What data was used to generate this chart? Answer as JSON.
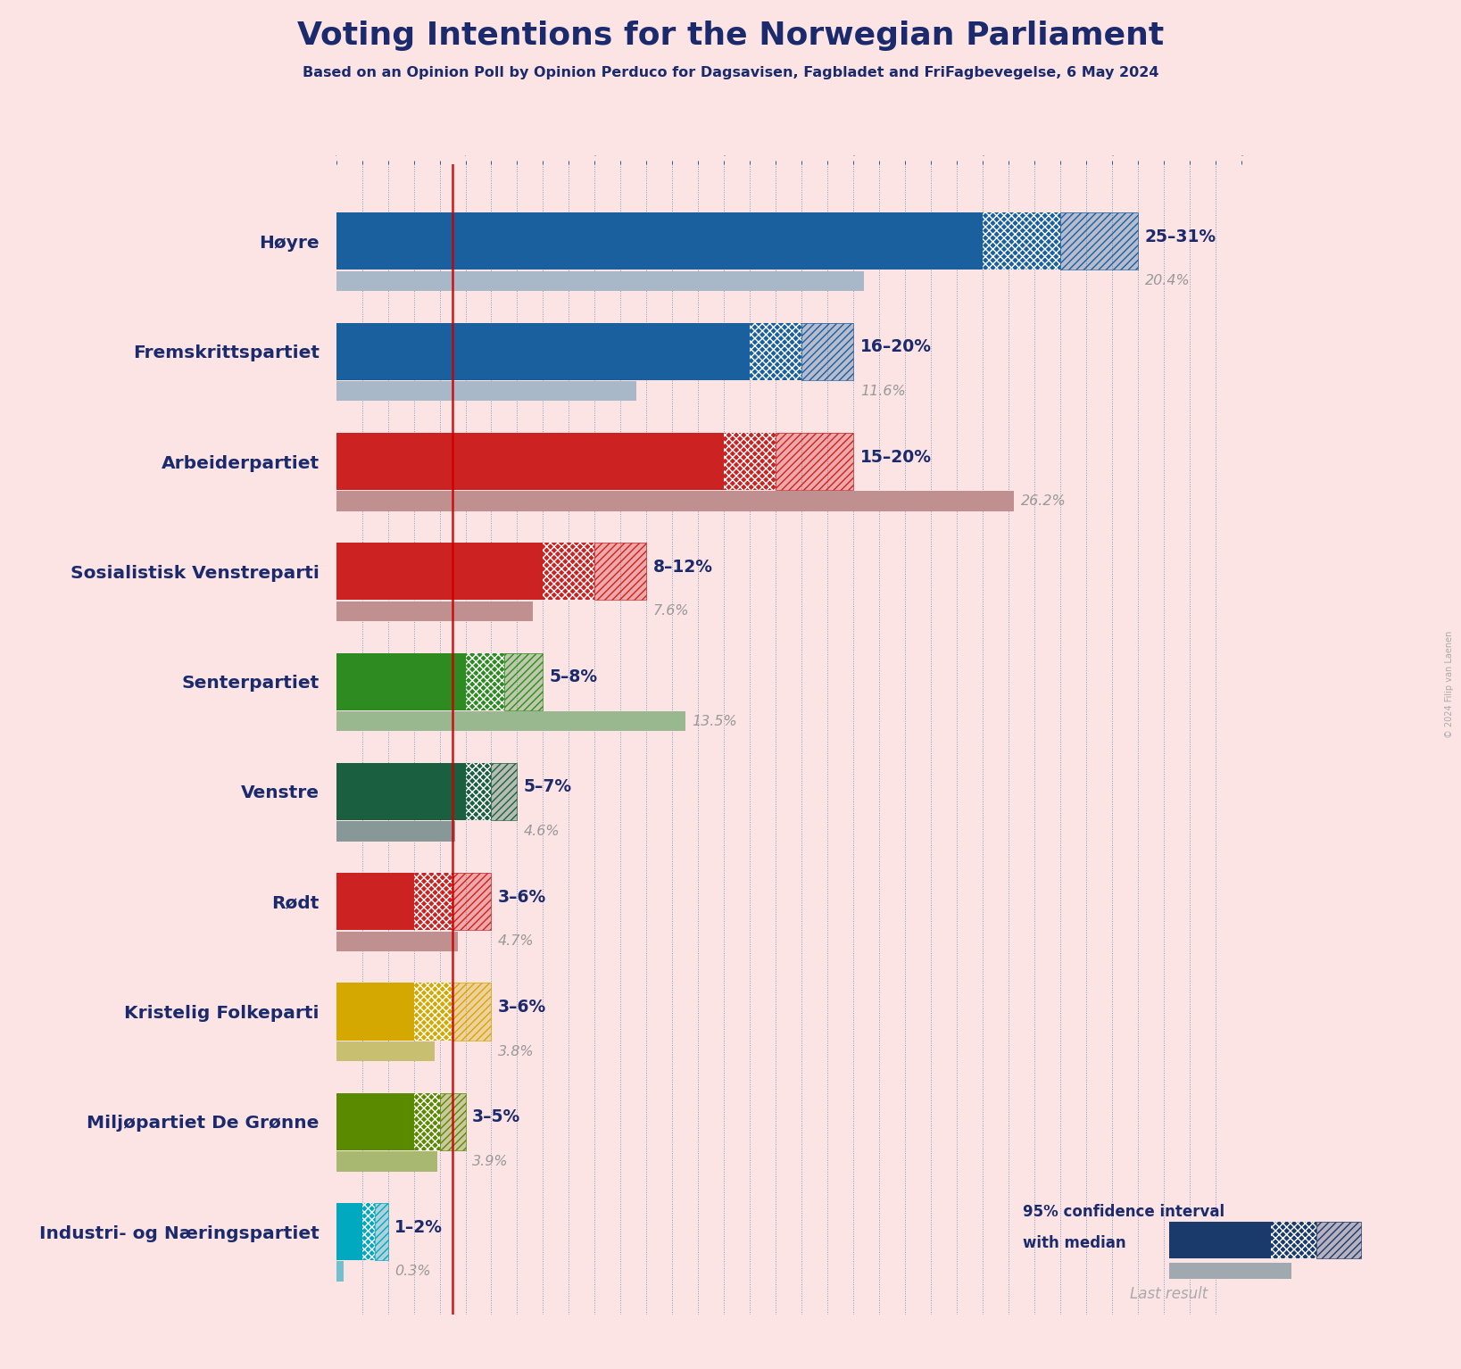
{
  "title": "Voting Intentions for the Norwegian Parliament",
  "subtitle": "Based on an Opinion Poll by Opinion Perduco for Dagsavisen, Fagbladet and FriFagbevegelse, 6 May 2024",
  "copyright": "© 2024 Filip van Laenen",
  "background_color": "#fce4e4",
  "title_color": "#1a2a6c",
  "parties": [
    {
      "name": "Høyre",
      "ci_low": 25,
      "median": 28,
      "ci_high": 31,
      "last_result": 20.4,
      "label": "25–31%",
      "last_label": "20.4%",
      "color": "#1a5f9e",
      "last_color": "#a8b8c8"
    },
    {
      "name": "Fremskrittspartiet",
      "ci_low": 16,
      "median": 18,
      "ci_high": 20,
      "last_result": 11.6,
      "label": "16–20%",
      "last_label": "11.6%",
      "color": "#1a5f9e",
      "last_color": "#a8b8c8"
    },
    {
      "name": "Arbeiderpartiet",
      "ci_low": 15,
      "median": 17,
      "ci_high": 20,
      "last_result": 26.2,
      "label": "15–20%",
      "last_label": "26.2%",
      "color": "#cc2222",
      "last_color": "#c09090"
    },
    {
      "name": "Sosialistisk Venstreparti",
      "ci_low": 8,
      "median": 10,
      "ci_high": 12,
      "last_result": 7.6,
      "label": "8–12%",
      "last_label": "7.6%",
      "color": "#cc2222",
      "last_color": "#c09090"
    },
    {
      "name": "Senterpartiet",
      "ci_low": 5,
      "median": 6.5,
      "ci_high": 8,
      "last_result": 13.5,
      "label": "5–8%",
      "last_label": "13.5%",
      "color": "#2e8b22",
      "last_color": "#9ab890"
    },
    {
      "name": "Venstre",
      "ci_low": 5,
      "median": 6,
      "ci_high": 7,
      "last_result": 4.6,
      "label": "5–7%",
      "last_label": "4.6%",
      "color": "#1a6040",
      "last_color": "#889898"
    },
    {
      "name": "Rødt",
      "ci_low": 3,
      "median": 4.5,
      "ci_high": 6,
      "last_result": 4.7,
      "label": "3–6%",
      "last_label": "4.7%",
      "color": "#cc2222",
      "last_color": "#c09090"
    },
    {
      "name": "Kristelig Folkeparti",
      "ci_low": 3,
      "median": 4.5,
      "ci_high": 6,
      "last_result": 3.8,
      "label": "3–6%",
      "last_label": "3.8%",
      "color": "#d4a800",
      "last_color": "#c8c070"
    },
    {
      "name": "Miljøpartiet De Grønne",
      "ci_low": 3,
      "median": 4,
      "ci_high": 5,
      "last_result": 3.9,
      "label": "3–5%",
      "last_label": "3.9%",
      "color": "#5a8a00",
      "last_color": "#a8b870"
    },
    {
      "name": "Industri- og Næringspartiet",
      "ci_low": 1,
      "median": 1.5,
      "ci_high": 2,
      "last_result": 0.3,
      "label": "1–2%",
      "last_label": "0.3%",
      "color": "#00a8c0",
      "last_color": "#70c0d0"
    }
  ],
  "median_line_color": "#cc0000",
  "grid_color": "#1a5f9e",
  "xlim": [
    0,
    35
  ],
  "bar_height": 0.52,
  "legend_text1": "95% confidence interval",
  "legend_text2": "with median",
  "legend_last": "Last result"
}
